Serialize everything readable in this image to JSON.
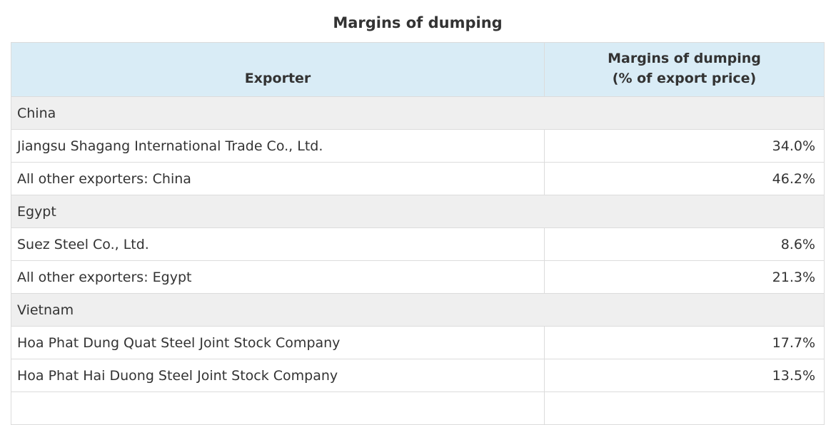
{
  "caption": "Margins of dumping",
  "header": {
    "exporter": "Exporter",
    "margin_line1": "Margins of dumping",
    "margin_line2": "(% of export price)"
  },
  "groups": [
    {
      "country": "China",
      "rows": [
        {
          "exporter": "Jiangsu Shagang International Trade Co., Ltd.",
          "margin": "34.0%"
        },
        {
          "exporter": "All other exporters: China",
          "margin": "46.2%"
        }
      ]
    },
    {
      "country": "Egypt",
      "rows": [
        {
          "exporter": "Suez Steel Co., Ltd.",
          "margin": "8.6%"
        },
        {
          "exporter": "All other exporters: Egypt",
          "margin": "21.3%"
        }
      ]
    },
    {
      "country": "Vietnam",
      "rows": [
        {
          "exporter": "Hoa Phat Dung Quat Steel Joint Stock Company",
          "margin": "17.7%"
        },
        {
          "exporter": "Hoa Phat Hai Duong Steel Joint Stock Company",
          "margin": "13.5%"
        }
      ]
    }
  ]
}
